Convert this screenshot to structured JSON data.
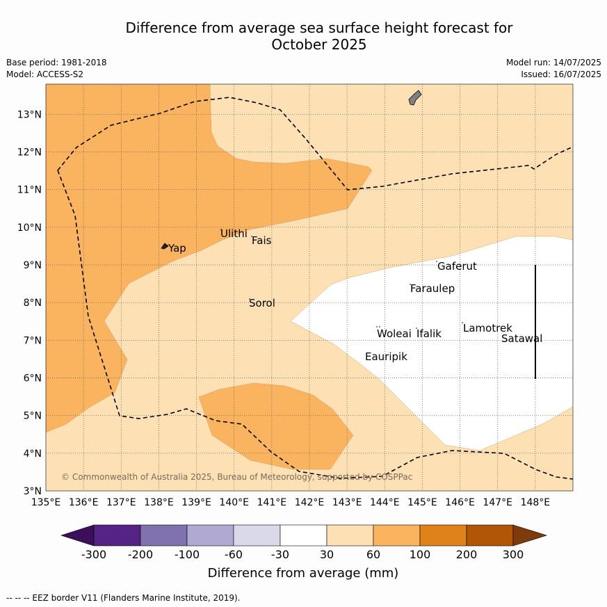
{
  "title_line1": "Difference from average sea surface height forecast for",
  "title_line2": "October 2025",
  "meta_left": {
    "base_period": "Base period: 1981-2018",
    "model": "Model: ACCESS-S2"
  },
  "meta_right": {
    "model_run": "Model run: 14/07/2025",
    "issued": "Issued: 16/07/2025"
  },
  "map": {
    "lon_range": [
      135,
      149
    ],
    "lat_range": [
      3,
      13.8
    ],
    "lon_ticks": [
      "135°E",
      "136°E",
      "137°E",
      "138°E",
      "139°E",
      "140°E",
      "141°E",
      "142°E",
      "143°E",
      "144°E",
      "145°E",
      "146°E",
      "147°E",
      "148°E"
    ],
    "lat_ticks": [
      "3°N",
      "4°N",
      "5°N",
      "6°N",
      "7°N",
      "8°N",
      "9°N",
      "10°N",
      "11°N",
      "12°N",
      "13°N"
    ],
    "places": [
      "Yap",
      "Ulithi",
      "Fais",
      "Gaferut",
      "Faraulep",
      "Sorol",
      "Woleai",
      "Ifalik",
      "Lamotrek",
      "Satawal",
      "Eauripik"
    ],
    "copyright": "© Commonwealth of Australia 2025, Bureau of Meteorology, supported by COSPPac",
    "colors": {
      "band_30_60": "#fde0b4",
      "band_60_100": "#fab35f",
      "band_neutral": "#ffffff",
      "land": "#808080"
    }
  },
  "colorbar": {
    "label": "Difference from average (mm)",
    "ticks": [
      "-300",
      "-200",
      "-100",
      "-60",
      "-30",
      "30",
      "60",
      "100",
      "200",
      "300"
    ],
    "colors": [
      "#3b0f5a",
      "#542384",
      "#7f72ae",
      "#b0a9d2",
      "#d9d9ea",
      "#ffffff",
      "#fde0b4",
      "#fab35f",
      "#e0821a",
      "#b05606",
      "#7f3c0a"
    ]
  },
  "footer": "-- -- -- EEZ border V11 (Flanders Marine Institute, 2019)."
}
